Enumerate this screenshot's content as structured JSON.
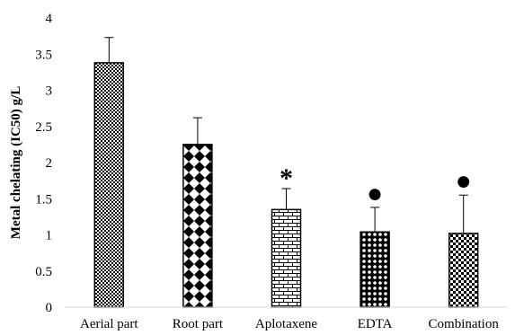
{
  "chart_data": {
    "type": "bar",
    "title": "",
    "xlabel": "",
    "ylabel": "Metal chelating (IC50) g/L",
    "ylim": [
      0,
      4
    ],
    "yticks": [
      "0",
      "0.5",
      "1",
      "1.5",
      "2",
      "2.5",
      "3",
      "3.5",
      "4"
    ],
    "grid": false,
    "categories": [
      "Aerial part",
      "Root part",
      "Aplotaxene",
      "EDTA",
      "Combination"
    ],
    "values": [
      3.38,
      2.25,
      1.35,
      1.04,
      1.02
    ],
    "errors": [
      0.35,
      0.37,
      0.29,
      0.34,
      0.53
    ],
    "patterns": [
      "checker-fine",
      "diamond-checker",
      "brick",
      "dots",
      "checker-coarse"
    ],
    "annotations": [
      {
        "category": "Aplotaxene",
        "symbol": "*"
      },
      {
        "category": "EDTA",
        "symbol": "●"
      },
      {
        "category": "Combination",
        "symbol": "●"
      }
    ],
    "colors": {
      "bar_stroke": "#000000",
      "pattern": "#000000",
      "background": "#ffffff"
    }
  }
}
